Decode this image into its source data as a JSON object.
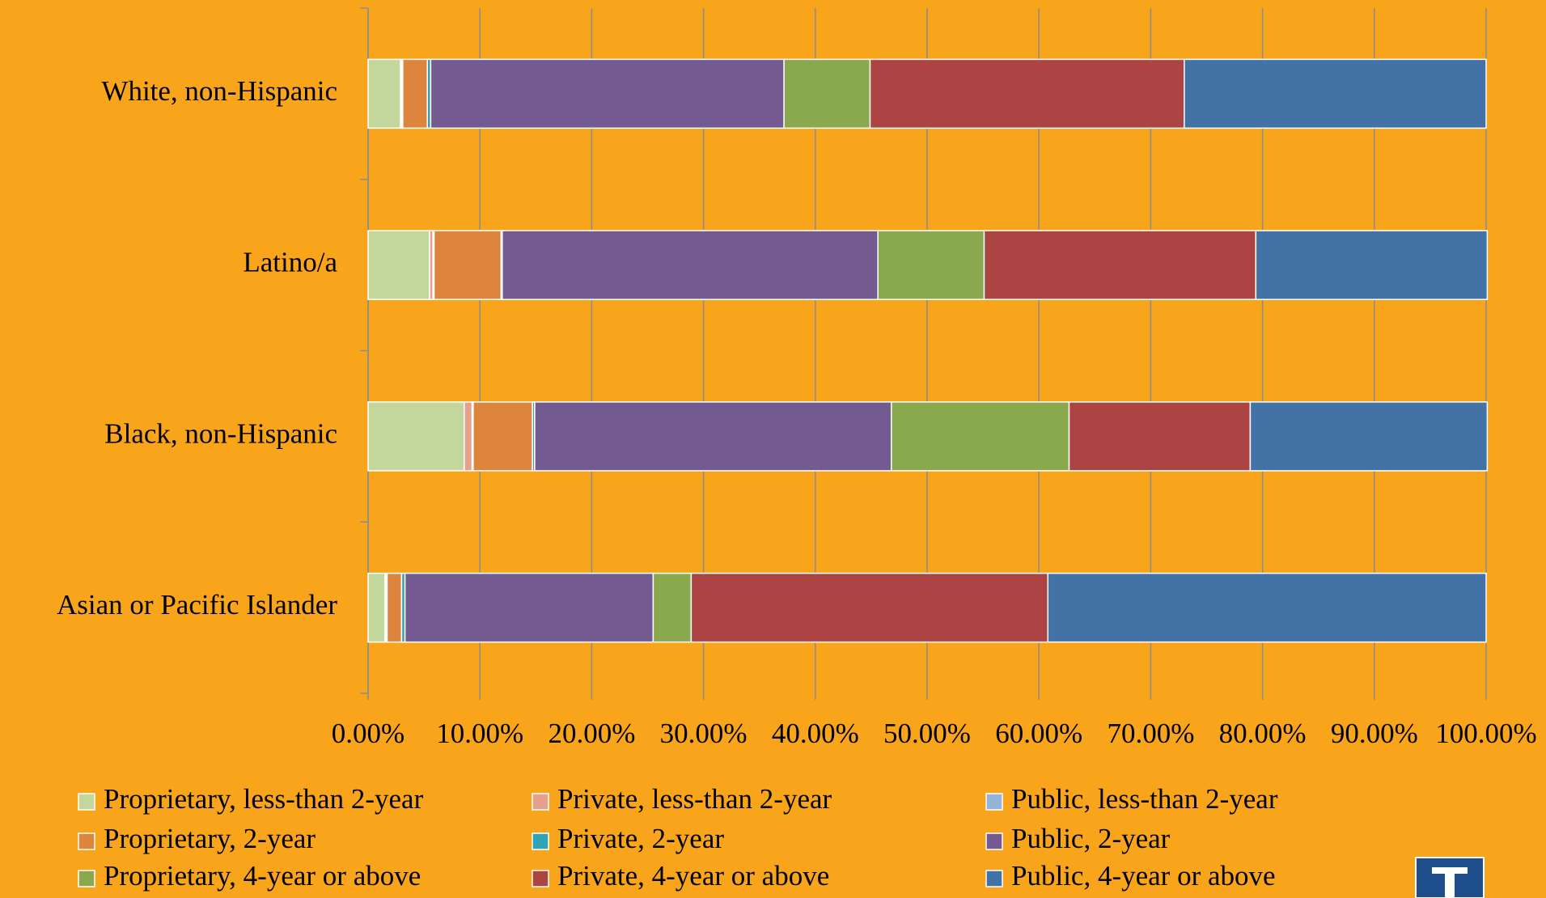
{
  "chart_data": {
    "type": "stacked_barh",
    "categories": [
      "White, non-Hispanic",
      "Latino/a",
      "Black, non-Hispanic",
      "Asian or Pacific Islander"
    ],
    "series": [
      {
        "name": "Proprietary, less-than 2-year",
        "color": "#C3D69B",
        "values": [
          2.9,
          5.5,
          8.6,
          1.5
        ]
      },
      {
        "name": "Private, less-than 2-year",
        "color": "#E6A08C",
        "values": [
          0.1,
          0.3,
          0.7,
          0.1
        ]
      },
      {
        "name": "Public, less-than 2-year",
        "color": "#95B3D7",
        "values": [
          0.1,
          0.1,
          0.1,
          0.1
        ]
      },
      {
        "name": "Proprietary, 2-year",
        "color": "#DD853C",
        "values": [
          2.2,
          6.0,
          5.3,
          1.3
        ]
      },
      {
        "name": "Private, 2-year",
        "color": "#31A3B8",
        "values": [
          0.3,
          0.1,
          0.2,
          0.3
        ]
      },
      {
        "name": "Public, 2-year",
        "color": "#735A90",
        "values": [
          31.6,
          33.6,
          31.9,
          22.2
        ]
      },
      {
        "name": "Proprietary, 4-year or above",
        "color": "#8AA84D",
        "values": [
          7.7,
          9.5,
          15.9,
          3.4
        ]
      },
      {
        "name": "Private, 4-year or above",
        "color": "#AB4442",
        "values": [
          28.1,
          24.3,
          16.2,
          31.9
        ]
      },
      {
        "name": "Public, 4-year or above",
        "color": "#4373A6",
        "values": [
          27.0,
          20.7,
          21.2,
          39.2
        ]
      }
    ],
    "xlim": [
      0,
      100
    ],
    "xticks": [
      {
        "value": 0,
        "label": "0.00%"
      },
      {
        "value": 10,
        "label": "10.00%"
      },
      {
        "value": 20,
        "label": "20.00%"
      },
      {
        "value": 30,
        "label": "30.00%"
      },
      {
        "value": 40,
        "label": "40.00%"
      },
      {
        "value": 50,
        "label": "50.00%"
      },
      {
        "value": 60,
        "label": "60.00%"
      },
      {
        "value": 70,
        "label": "70.00%"
      },
      {
        "value": 80,
        "label": "80.00%"
      },
      {
        "value": 90,
        "label": "90.00%"
      },
      {
        "value": 100,
        "label": "100.00%"
      }
    ],
    "grid": true
  }
}
